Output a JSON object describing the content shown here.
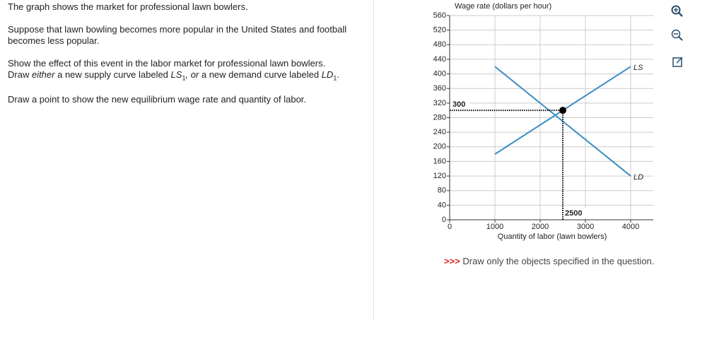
{
  "question": {
    "intro": "The graph shows the market for professional lawn bowlers.",
    "event": "Suppose that lawn bowling becomes more popular in the United States and football becomes less popular.",
    "task1": "Show the effect of this event in the labor market for professional lawn bowlers.",
    "task2": [
      "Draw ",
      "either",
      " a new supply curve labeled ",
      "LS",
      "1",
      ",",
      " or",
      " a new demand curve labeled ",
      "LD",
      "1",
      "."
    ],
    "task3": "Draw a point to show the new equilibrium wage rate and quantity of labor."
  },
  "chart_data": {
    "type": "line",
    "y_label": "Wage rate (dollars per hour)",
    "x_label": "Quantity of labor (lawn bowlers)",
    "xlim": [
      0,
      4500
    ],
    "ylim": [
      0,
      560
    ],
    "xticks": [
      0,
      1000,
      2000,
      3000,
      4000
    ],
    "yticks": [
      0,
      40,
      80,
      120,
      160,
      200,
      240,
      280,
      320,
      360,
      400,
      440,
      480,
      520,
      560
    ],
    "grid": true,
    "series": [
      {
        "name": "LS",
        "color": "#3a8dc4",
        "x": [
          1000,
          4000
        ],
        "values": [
          180,
          420
        ]
      },
      {
        "name": "LD",
        "color": "#3a8dc4",
        "x": [
          1000,
          4000
        ],
        "values": [
          420,
          120
        ]
      }
    ],
    "point": {
      "x": 2500,
      "y": 300
    }
  },
  "footer": {
    "marker": ">>>",
    "text": "Draw only the objects specified in the question."
  }
}
